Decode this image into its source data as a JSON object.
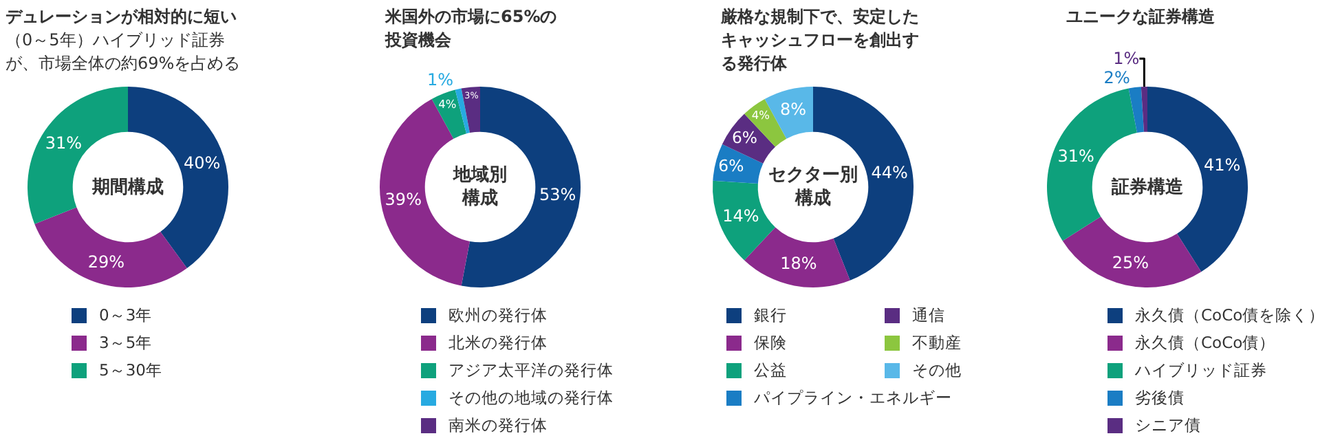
{
  "chart_data": [
    {
      "type": "donut",
      "title": "デュレーションが相対的に短い",
      "subtitle": "（0～5年）ハイブリッド証券が、市場全体の約69%を占める",
      "annotations": [
        "期間構成"
      ],
      "categories": [
        "0～3年",
        "3～5年",
        "5～30年"
      ],
      "values": [
        40,
        29,
        31
      ],
      "value_labels": [
        "40%",
        "29%",
        "31%"
      ],
      "colors": [
        "#0d3f7e",
        "#8b2a8c",
        "#0ea17c"
      ],
      "legend": "bottom"
    },
    {
      "type": "donut",
      "title": "米国外の市場に65%の投資機会",
      "annotations": [
        "地域別構成"
      ],
      "categories": [
        "欧州の発行体",
        "北米の発行体",
        "アジア太平洋の発行体",
        "その他の地域の発行体",
        "南米の発行体"
      ],
      "values": [
        53,
        39,
        4,
        1,
        3
      ],
      "value_labels": [
        "53%",
        "39%",
        "4%",
        "1%",
        "3%"
      ],
      "colors": [
        "#0d3f7e",
        "#8b2a8c",
        "#0ea17c",
        "#27aae1",
        "#5a2d82"
      ],
      "legend": "bottom"
    },
    {
      "type": "donut",
      "title": "厳格な規制下で、安定したキャッシュフローを創出する発行体",
      "annotations": [
        "セクター別構成"
      ],
      "categories": [
        "銀行",
        "保険",
        "公益",
        "パイプライン・エネルギー",
        "通信",
        "不動産",
        "その他"
      ],
      "values": [
        44,
        18,
        14,
        6,
        6,
        4,
        8
      ],
      "value_labels": [
        "44%",
        "18%",
        "14%",
        "6%",
        "6%",
        "4%",
        "8%"
      ],
      "colors": [
        "#0d3f7e",
        "#8b2a8c",
        "#0ea17c",
        "#1a7dc4",
        "#5a2d82",
        "#8cc63f",
        "#59b8e8"
      ],
      "legend": "bottom"
    },
    {
      "type": "donut",
      "title": "ユニークな証券構造",
      "annotations": [
        "証券構造"
      ],
      "categories": [
        "永久債（CoCo債を除く）",
        "永久債（CoCo債）",
        "ハイブリッド証券",
        "劣後債",
        "シニア債"
      ],
      "values": [
        41,
        25,
        31,
        2,
        1
      ],
      "value_labels": [
        "41%",
        "25%",
        "31%",
        "2%",
        "1%"
      ],
      "colors": [
        "#0d3f7e",
        "#8b2a8c",
        "#0ea17c",
        "#1a7dc4",
        "#5a2d82"
      ],
      "legend": "bottom"
    }
  ]
}
